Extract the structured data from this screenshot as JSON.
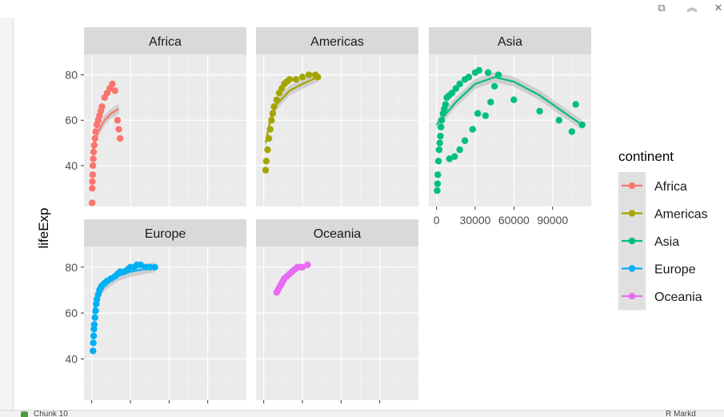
{
  "window": {
    "controls": [
      {
        "name": "popout-icon",
        "glyph": "⧉"
      },
      {
        "name": "collapse-icon",
        "glyph": "︽"
      },
      {
        "name": "close-icon",
        "glyph": "✕"
      }
    ]
  },
  "bottom_bar": {
    "chunk_label": "Chunk 10",
    "mode_label": "R Markd"
  },
  "chart_data": {
    "type": "scatter",
    "facet_variable": "continent",
    "ylabel": "lifeExp",
    "xlabel": "",
    "ylim": [
      22,
      89
    ],
    "y_ticks": [
      40,
      60,
      80
    ],
    "xlim": [
      -6000,
      120000
    ],
    "x_ticks": [
      0,
      30000,
      60000,
      90000
    ],
    "x_tick_labels": [
      "0",
      "30000",
      "60000",
      "90000"
    ],
    "grid": true,
    "smooth": true,
    "legend": {
      "title": "continent",
      "position": "right",
      "entries": [
        "Africa",
        "Americas",
        "Asia",
        "Europe",
        "Oceania"
      ]
    },
    "colors": {
      "Africa": "#F8766D",
      "Americas": "#A3A500",
      "Asia": "#00BF7D",
      "Europe": "#00B0F6",
      "Oceania": "#E76BF3"
    },
    "panels": [
      {
        "continent": "Africa",
        "label": "Africa",
        "points": [
          [
            300,
            23.6
          ],
          [
            400,
            30
          ],
          [
            500,
            33
          ],
          [
            700,
            36
          ],
          [
            900,
            40
          ],
          [
            1200,
            43
          ],
          [
            1500,
            46
          ],
          [
            2000,
            49
          ],
          [
            2500,
            52
          ],
          [
            3000,
            55
          ],
          [
            4000,
            58
          ],
          [
            5000,
            60
          ],
          [
            6000,
            62
          ],
          [
            7000,
            64
          ],
          [
            8000,
            66
          ],
          [
            10000,
            70
          ],
          [
            12000,
            72
          ],
          [
            14000,
            74
          ],
          [
            16000,
            76
          ],
          [
            18000,
            73
          ],
          [
            20000,
            60
          ],
          [
            21000,
            56
          ],
          [
            22000,
            52
          ]
        ],
        "trend": [
          [
            300,
            46
          ],
          [
            2000,
            50
          ],
          [
            5000,
            55
          ],
          [
            10000,
            60
          ],
          [
            15000,
            63
          ],
          [
            21000,
            65
          ]
        ]
      },
      {
        "continent": "Americas",
        "label": "Americas",
        "points": [
          [
            1500,
            38
          ],
          [
            2000,
            42
          ],
          [
            3000,
            47
          ],
          [
            4000,
            52
          ],
          [
            5000,
            56
          ],
          [
            6000,
            60
          ],
          [
            7000,
            63
          ],
          [
            8000,
            66
          ],
          [
            10000,
            69
          ],
          [
            12000,
            72
          ],
          [
            14000,
            74
          ],
          [
            16000,
            76
          ],
          [
            18000,
            77
          ],
          [
            20000,
            78
          ],
          [
            25000,
            78
          ],
          [
            30000,
            79
          ],
          [
            35000,
            80
          ],
          [
            40000,
            80
          ],
          [
            42000,
            79
          ]
        ],
        "trend": [
          [
            1500,
            50
          ],
          [
            5000,
            60
          ],
          [
            10000,
            67
          ],
          [
            20000,
            73
          ],
          [
            30000,
            76
          ],
          [
            42000,
            79
          ]
        ]
      },
      {
        "continent": "Asia",
        "label": "Asia",
        "points": [
          [
            500,
            29
          ],
          [
            800,
            32
          ],
          [
            1000,
            36
          ],
          [
            1500,
            42
          ],
          [
            2000,
            47
          ],
          [
            2500,
            50
          ],
          [
            3000,
            53
          ],
          [
            3500,
            57
          ],
          [
            4000,
            60
          ],
          [
            5000,
            63
          ],
          [
            6000,
            65
          ],
          [
            7000,
            67
          ],
          [
            8000,
            70
          ],
          [
            10000,
            71
          ],
          [
            12000,
            72
          ],
          [
            15000,
            74
          ],
          [
            18000,
            76
          ],
          [
            22000,
            78
          ],
          [
            25000,
            79
          ],
          [
            30000,
            81
          ],
          [
            33000,
            82
          ],
          [
            40000,
            81
          ],
          [
            48000,
            80
          ],
          [
            45000,
            75
          ],
          [
            42000,
            68
          ],
          [
            38000,
            62
          ],
          [
            32000,
            63
          ],
          [
            28000,
            56
          ],
          [
            22000,
            51
          ],
          [
            18000,
            47
          ],
          [
            14000,
            44
          ],
          [
            10000,
            43
          ],
          [
            60000,
            69
          ],
          [
            80000,
            64
          ],
          [
            95000,
            60
          ],
          [
            105000,
            55
          ],
          [
            108000,
            67
          ],
          [
            113000,
            58
          ]
        ],
        "trend": [
          [
            0,
            58
          ],
          [
            15000,
            68
          ],
          [
            30000,
            76
          ],
          [
            45000,
            79
          ],
          [
            60000,
            77
          ],
          [
            80000,
            71
          ],
          [
            100000,
            63
          ],
          [
            113000,
            58
          ]
        ]
      },
      {
        "continent": "Europe",
        "label": "Europe",
        "points": [
          [
            1000,
            43.5
          ],
          [
            1200,
            47
          ],
          [
            1500,
            50
          ],
          [
            1700,
            53
          ],
          [
            2000,
            55
          ],
          [
            2500,
            58
          ],
          [
            3000,
            61
          ],
          [
            3500,
            64
          ],
          [
            4000,
            66
          ],
          [
            5000,
            68
          ],
          [
            6000,
            70
          ],
          [
            7000,
            71
          ],
          [
            8000,
            72
          ],
          [
            10000,
            73
          ],
          [
            12000,
            74
          ],
          [
            15000,
            75
          ],
          [
            18000,
            76
          ],
          [
            20000,
            77
          ],
          [
            22000,
            78
          ],
          [
            25000,
            78
          ],
          [
            28000,
            79
          ],
          [
            30000,
            80
          ],
          [
            33000,
            80
          ],
          [
            35000,
            81
          ],
          [
            38000,
            81
          ],
          [
            42000,
            80
          ],
          [
            45000,
            80
          ],
          [
            49000,
            80
          ]
        ],
        "trend": [
          [
            1000,
            60
          ],
          [
            5000,
            68
          ],
          [
            10000,
            72
          ],
          [
            20000,
            76
          ],
          [
            30000,
            78
          ],
          [
            49000,
            80
          ]
        ]
      },
      {
        "continent": "Oceania",
        "label": "Oceania",
        "points": [
          [
            10000,
            69
          ],
          [
            11000,
            70
          ],
          [
            12000,
            71
          ],
          [
            13000,
            72
          ],
          [
            14000,
            73
          ],
          [
            15000,
            74
          ],
          [
            16000,
            75
          ],
          [
            18000,
            76
          ],
          [
            20000,
            77
          ],
          [
            22000,
            78
          ],
          [
            24000,
            79
          ],
          [
            26000,
            80
          ],
          [
            28000,
            80
          ],
          [
            30000,
            80
          ],
          [
            34000,
            81
          ]
        ],
        "trend": []
      }
    ]
  }
}
